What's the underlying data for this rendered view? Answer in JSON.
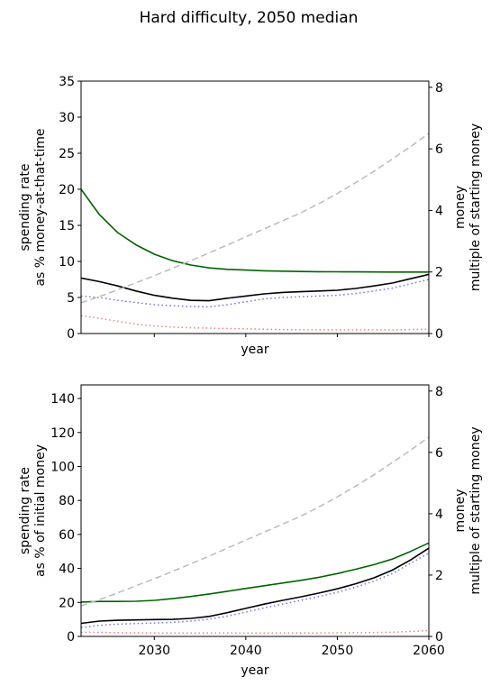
{
  "title": "Hard difficulty, 2050 median",
  "chart_data": [
    {
      "type": "line",
      "xlabel": "year",
      "ylabel_lines": [
        "spending rate",
        "as % money-at-that-time"
      ],
      "y2label_lines": [
        "money",
        "multiple of starting money"
      ],
      "xlim": [
        2022,
        2060
      ],
      "ylim": [
        0,
        35
      ],
      "y2lim": [
        0,
        8.2
      ],
      "xticks": [
        2030,
        2040,
        2050,
        2060
      ],
      "xtick_labels_shown": false,
      "yticks": [
        0,
        5,
        10,
        15,
        20,
        25,
        30,
        35
      ],
      "y2ticks": [
        0,
        2,
        4,
        6,
        8
      ],
      "x": [
        2022,
        2024,
        2026,
        2028,
        2030,
        2032,
        2034,
        2036,
        2038,
        2040,
        2042,
        2044,
        2046,
        2048,
        2050,
        2052,
        2054,
        2056,
        2058,
        2060
      ],
      "series": [
        {
          "axis": "left",
          "color": "#006400",
          "style": "solid",
          "values": [
            20.0,
            16.5,
            14.0,
            12.3,
            11.0,
            10.1,
            9.5,
            9.1,
            8.9,
            8.8,
            8.7,
            8.65,
            8.6,
            8.58,
            8.56,
            8.55,
            8.54,
            8.53,
            8.52,
            8.52
          ]
        },
        {
          "axis": "left",
          "color": "#000000",
          "style": "solid",
          "values": [
            7.7,
            7.2,
            6.6,
            5.9,
            5.3,
            4.9,
            4.6,
            4.55,
            4.9,
            5.2,
            5.5,
            5.7,
            5.8,
            5.9,
            6.0,
            6.25,
            6.6,
            7.0,
            7.6,
            8.2
          ]
        },
        {
          "axis": "left",
          "color": "#7070e0",
          "style": "dotted",
          "values": [
            5.2,
            5.0,
            4.6,
            4.3,
            4.0,
            3.85,
            3.75,
            3.7,
            4.0,
            4.4,
            4.8,
            5.0,
            5.1,
            5.2,
            5.3,
            5.55,
            5.9,
            6.3,
            6.9,
            7.5
          ]
        },
        {
          "axis": "left",
          "color": "#f08080",
          "style": "dotted",
          "values": [
            2.5,
            2.1,
            1.7,
            1.3,
            1.05,
            0.9,
            0.8,
            0.75,
            0.7,
            0.65,
            0.6,
            0.55,
            0.52,
            0.5,
            0.5,
            0.5,
            0.5,
            0.5,
            0.55,
            0.6
          ]
        },
        {
          "axis": "right",
          "color": "#bbbbbb",
          "style": "dashed",
          "values": [
            1.0,
            1.2,
            1.42,
            1.65,
            1.88,
            2.12,
            2.37,
            2.62,
            2.88,
            3.14,
            3.4,
            3.66,
            3.92,
            4.22,
            4.55,
            4.9,
            5.27,
            5.67,
            6.07,
            6.5
          ]
        }
      ]
    },
    {
      "type": "line",
      "xlabel": "year",
      "ylabel_lines": [
        "spending rate",
        "as % of initial money"
      ],
      "y2label_lines": [
        "money",
        "multiple of starting money"
      ],
      "xlim": [
        2022,
        2060
      ],
      "ylim": [
        0,
        148
      ],
      "y2lim": [
        0,
        8.2
      ],
      "xticks": [
        2030,
        2040,
        2050,
        2060
      ],
      "xtick_labels_shown": true,
      "yticks": [
        0,
        20,
        40,
        60,
        80,
        100,
        120,
        140
      ],
      "y2ticks": [
        0,
        2,
        4,
        6,
        8
      ],
      "x": [
        2022,
        2024,
        2026,
        2028,
        2030,
        2032,
        2034,
        2036,
        2038,
        2040,
        2042,
        2044,
        2046,
        2048,
        2050,
        2052,
        2054,
        2056,
        2058,
        2060
      ],
      "series": [
        {
          "axis": "left",
          "color": "#006400",
          "style": "solid",
          "values": [
            20.2,
            20.6,
            20.6,
            20.7,
            21.2,
            22.2,
            23.5,
            25.0,
            26.6,
            28.2,
            29.8,
            31.4,
            33.0,
            34.8,
            37.0,
            39.5,
            42.2,
            45.5,
            50.0,
            55.0
          ]
        },
        {
          "axis": "left",
          "color": "#000000",
          "style": "solid",
          "values": [
            7.7,
            9.0,
            9.5,
            9.7,
            9.9,
            10.0,
            10.6,
            11.8,
            14.0,
            16.5,
            19.0,
            21.2,
            23.3,
            25.5,
            28.0,
            31.0,
            34.5,
            39.0,
            45.0,
            52.0
          ]
        },
        {
          "axis": "left",
          "color": "#7070e0",
          "style": "dotted",
          "values": [
            5.2,
            6.5,
            7.2,
            7.6,
            7.9,
            8.3,
            9.0,
            10.2,
            12.0,
            14.3,
            16.8,
            19.0,
            21.2,
            23.5,
            26.0,
            29.0,
            32.5,
            37.0,
            43.0,
            49.0
          ]
        },
        {
          "axis": "left",
          "color": "#f08080",
          "style": "dotted",
          "values": [
            2.5,
            2.4,
            2.2,
            2.1,
            2.0,
            2.0,
            2.0,
            2.0,
            2.0,
            2.0,
            2.0,
            2.0,
            2.0,
            2.0,
            2.1,
            2.2,
            2.3,
            2.5,
            2.9,
            3.5
          ]
        },
        {
          "axis": "right",
          "color": "#bbbbbb",
          "style": "dashed",
          "values": [
            1.0,
            1.2,
            1.42,
            1.65,
            1.88,
            2.12,
            2.37,
            2.62,
            2.88,
            3.14,
            3.4,
            3.66,
            3.92,
            4.22,
            4.55,
            4.9,
            5.27,
            5.67,
            6.07,
            6.5
          ]
        }
      ]
    }
  ]
}
